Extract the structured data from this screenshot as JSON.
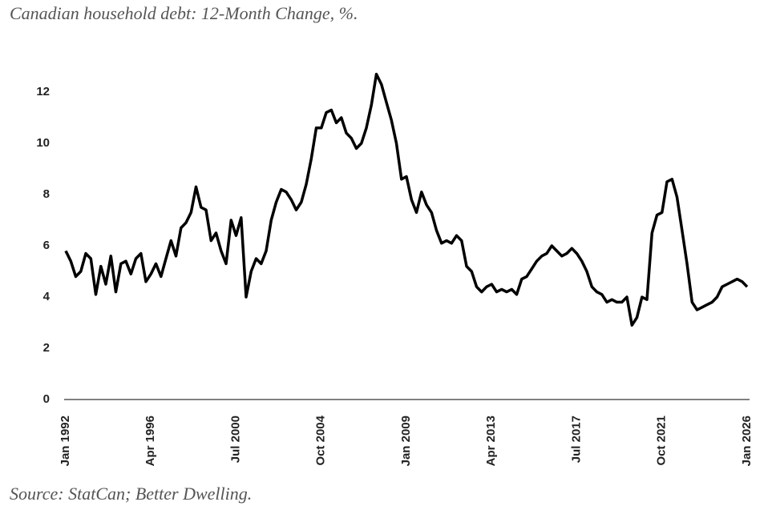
{
  "chart_data": {
    "type": "line",
    "title": "Canadian household debt: 12-Month Change, %.",
    "source": "Source: StatCan; Better Dwelling.",
    "x": [
      "Jan 1992",
      "Apr 1992",
      "Jul 1992",
      "Oct 1992",
      "Jan 1993",
      "Apr 1993",
      "Jul 1993",
      "Oct 1993",
      "Jan 1994",
      "Apr 1994",
      "Jul 1994",
      "Oct 1994",
      "Jan 1995",
      "Apr 1995",
      "Jul 1995",
      "Oct 1995",
      "Jan 1996",
      "Apr 1996",
      "Jul 1996",
      "Oct 1996",
      "Jan 1997",
      "Apr 1997",
      "Jul 1997",
      "Oct 1997",
      "Jan 1998",
      "Apr 1998",
      "Jul 1998",
      "Oct 1998",
      "Jan 1999",
      "Apr 1999",
      "Jul 1999",
      "Oct 1999",
      "Jan 2000",
      "Apr 2000",
      "Jul 2000",
      "Oct 2000",
      "Jan 2001",
      "Apr 2001",
      "Jul 2001",
      "Oct 2001",
      "Jan 2002",
      "Apr 2002",
      "Jul 2002",
      "Oct 2002",
      "Jan 2003",
      "Apr 2003",
      "Jul 2003",
      "Oct 2003",
      "Jan 2004",
      "Apr 2004",
      "Jul 2004",
      "Oct 2004",
      "Jan 2005",
      "Apr 2005",
      "Jul 2005",
      "Oct 2005",
      "Jan 2006",
      "Apr 2006",
      "Jul 2006",
      "Oct 2006",
      "Jan 2007",
      "Apr 2007",
      "Jul 2007",
      "Oct 2007",
      "Jan 2008",
      "Apr 2008",
      "Jul 2008",
      "Oct 2008",
      "Jan 2009",
      "Apr 2009",
      "Jul 2009",
      "Oct 2009",
      "Jan 2010",
      "Apr 2010",
      "Jul 2010",
      "Oct 2010",
      "Jan 2011",
      "Apr 2011",
      "Jul 2011",
      "Oct 2011",
      "Jan 2012",
      "Apr 2012",
      "Jul 2012",
      "Oct 2012",
      "Jan 2013",
      "Apr 2013",
      "Jul 2013",
      "Oct 2013",
      "Jan 2014",
      "Apr 2014",
      "Jul 2014",
      "Oct 2014",
      "Jan 2015",
      "Apr 2015",
      "Jul 2015",
      "Oct 2015",
      "Jan 2016",
      "Apr 2016",
      "Jul 2016",
      "Oct 2016",
      "Jan 2017",
      "Apr 2017",
      "Jul 2017",
      "Oct 2017",
      "Jan 2018",
      "Apr 2018",
      "Jul 2018",
      "Oct 2018",
      "Jan 2019",
      "Apr 2019",
      "Jul 2019",
      "Oct 2019",
      "Jan 2020",
      "Apr 2020",
      "Jul 2020",
      "Oct 2020",
      "Jan 2021",
      "Apr 2021",
      "Jul 2021",
      "Oct 2021",
      "Jan 2022",
      "Apr 2022",
      "Jul 2022",
      "Oct 2022",
      "Jan 2023",
      "Apr 2023",
      "Jul 2023",
      "Oct 2023",
      "Jan 2024",
      "Apr 2024",
      "Jul 2024",
      "Oct 2024",
      "Jan 2025",
      "Apr 2025",
      "Jul 2025",
      "Oct 2025",
      "Jan 2026"
    ],
    "series": [
      {
        "name": "12-Month Change",
        "color": "#000000",
        "values": [
          5.8,
          5.4,
          4.8,
          5.0,
          5.7,
          5.5,
          4.1,
          5.2,
          4.5,
          5.6,
          4.2,
          5.3,
          5.4,
          4.9,
          5.5,
          5.7,
          4.6,
          4.9,
          5.3,
          4.8,
          5.5,
          6.2,
          5.6,
          6.7,
          6.9,
          7.3,
          8.3,
          7.5,
          7.4,
          6.2,
          6.5,
          5.8,
          5.3,
          7.0,
          6.4,
          7.1,
          4.0,
          5.0,
          5.5,
          5.3,
          5.8,
          7.0,
          7.7,
          8.2,
          8.1,
          7.8,
          7.4,
          7.7,
          8.4,
          9.4,
          10.6,
          10.6,
          11.2,
          11.3,
          10.8,
          11.0,
          10.4,
          10.2,
          9.8,
          10.0,
          10.6,
          11.5,
          12.7,
          12.3,
          11.6,
          10.9,
          10.0,
          8.6,
          8.7,
          7.8,
          7.3,
          8.1,
          7.6,
          7.3,
          6.6,
          6.1,
          6.2,
          6.1,
          6.4,
          6.2,
          5.2,
          5.0,
          4.4,
          4.2,
          4.4,
          4.5,
          4.2,
          4.3,
          4.2,
          4.3,
          4.1,
          4.7,
          4.8,
          5.1,
          5.4,
          5.6,
          5.7,
          6.0,
          5.8,
          5.6,
          5.7,
          5.9,
          5.7,
          5.4,
          5.0,
          4.4,
          4.2,
          4.1,
          3.8,
          3.9,
          3.8,
          3.8,
          4.0,
          2.9,
          3.2,
          4.0,
          3.9,
          6.5,
          7.2,
          7.3,
          8.5,
          8.6,
          7.9,
          6.6,
          5.3,
          3.8,
          3.5,
          3.6,
          3.7,
          3.8,
          4.0,
          4.4,
          4.5,
          4.6,
          4.7,
          4.6,
          4.4
        ]
      }
    ],
    "xticks": [
      "Jan 1992",
      "Apr 1996",
      "Jul 2000",
      "Oct 2004",
      "Jan 2009",
      "Apr 2013",
      "Jul 2017",
      "Oct 2021",
      "Jan 2026"
    ],
    "ylim": [
      0,
      13.5
    ],
    "yticks": [
      0,
      2,
      4,
      6,
      8,
      10,
      12
    ],
    "grid": false
  }
}
